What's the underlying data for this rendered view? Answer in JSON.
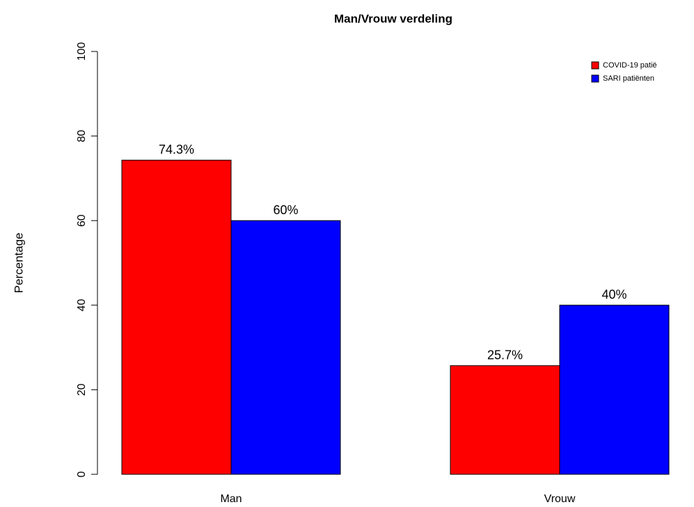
{
  "chart_data": {
    "type": "bar",
    "title": "Man/Vrouw verdeling",
    "ylabel": "Percentage",
    "categories": [
      "Man",
      "Vrouw"
    ],
    "series": [
      {
        "name": "COVID-19 patië",
        "color": "#ff0000",
        "values": [
          74.3,
          25.7
        ],
        "value_labels": [
          "74.3%",
          "25.7%"
        ]
      },
      {
        "name": "SARI patiënten",
        "color": "#0000ff",
        "values": [
          60,
          40
        ],
        "value_labels": [
          "60%",
          "40%"
        ]
      }
    ],
    "ylim": [
      0,
      100
    ],
    "yticks": [
      0,
      20,
      40,
      60,
      80,
      100
    ],
    "legend": "top-right"
  }
}
